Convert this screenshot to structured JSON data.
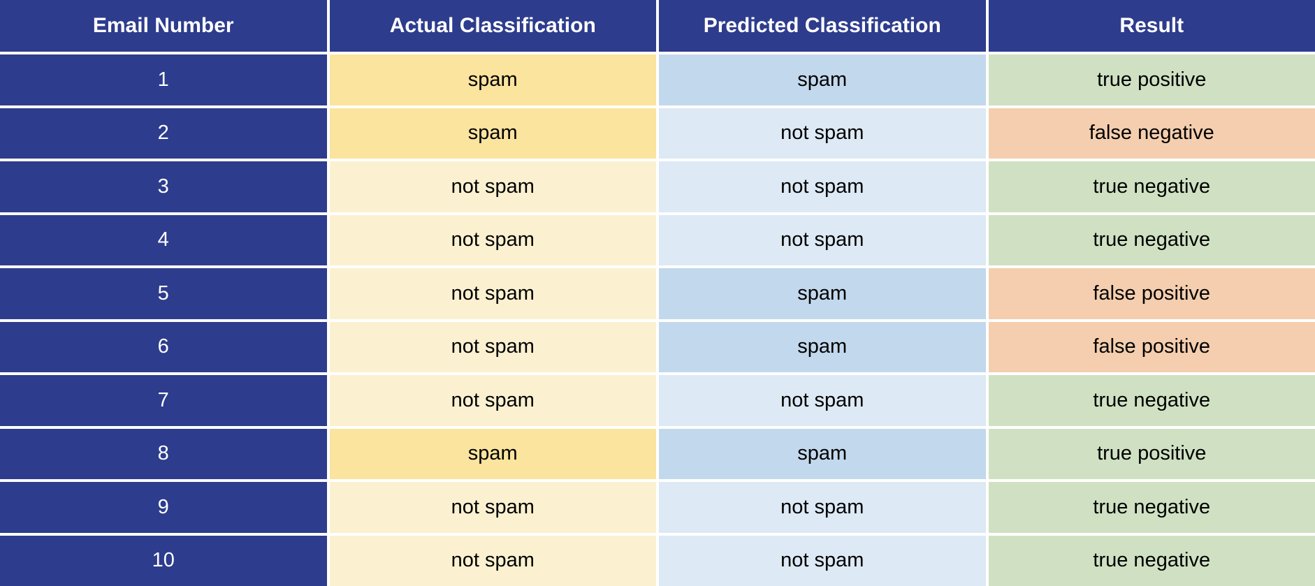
{
  "chart_data": {
    "type": "table",
    "columns": [
      "Email Number",
      "Actual Classification",
      "Predicted Classification",
      "Result"
    ],
    "rows": [
      [
        "1",
        "spam",
        "spam",
        "true positive"
      ],
      [
        "2",
        "spam",
        "not spam",
        "false negative"
      ],
      [
        "3",
        "not spam",
        "not spam",
        "true negative"
      ],
      [
        "4",
        "not spam",
        "not spam",
        "true negative"
      ],
      [
        "5",
        "not spam",
        "spam",
        "false positive"
      ],
      [
        "6",
        "not spam",
        "spam",
        "false positive"
      ],
      [
        "7",
        "not spam",
        "not spam",
        "true negative"
      ],
      [
        "8",
        "spam",
        "spam",
        "true positive"
      ],
      [
        "9",
        "not spam",
        "not spam",
        "true negative"
      ],
      [
        "10",
        "not spam",
        "not spam",
        "true negative"
      ]
    ],
    "legend_note": "cell background encodes value",
    "layout": "4 equal columns, header row + 10 data rows, white 4px grid gaps"
  },
  "colors": {
    "header_bg": "#2d3c8c",
    "header_text": "#ffffff",
    "email_col_bg": "#2d3c8c",
    "email_col_text": "#ffffff",
    "actual_spam_bg": "#fae49e",
    "actual_not_spam_bg": "#fbf1d1",
    "predicted_spam_bg": "#c2d8ec",
    "predicted_not_spam_bg": "#dde9f5",
    "result_true_bg": "#cfe1c2",
    "result_false_bg": "#f4ceae",
    "cell_text": "#000000",
    "grid_gap": "#ffffff"
  }
}
